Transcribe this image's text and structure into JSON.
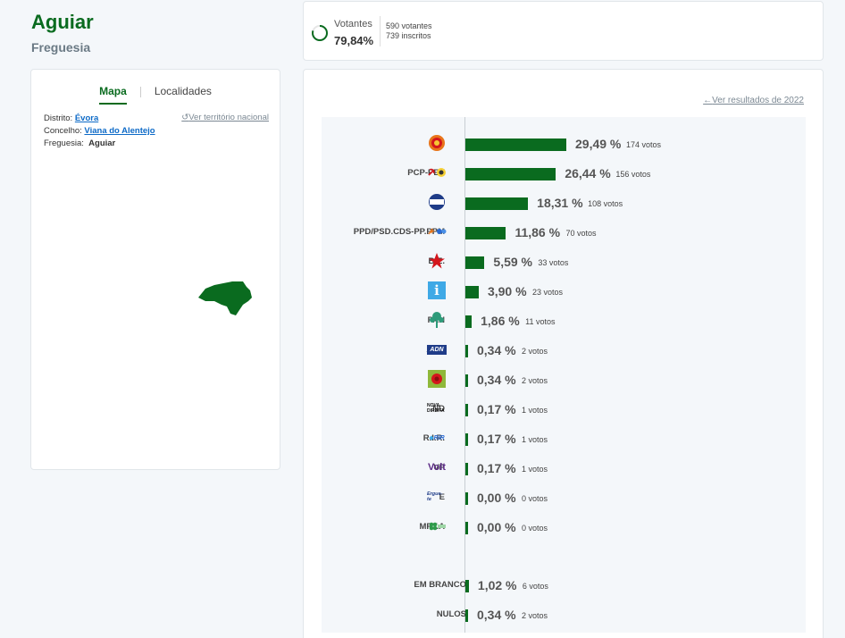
{
  "header": {
    "title": "Aguiar",
    "subtitle": "Freguesia"
  },
  "left_panel": {
    "tabs": [
      {
        "label": "Mapa"
      },
      {
        "label": "Localidades"
      }
    ],
    "distrito_label": "Distrito:",
    "distrito_value": "Évora",
    "concelho_label": "Concelho:",
    "concelho_value": "Viana do Alentejo",
    "freguesia_label": "Freguesia:",
    "freguesia_value": "Aguiar",
    "national_link": "Ver território nacional",
    "map_color": "#0a6b1f"
  },
  "votantes": {
    "label": "Votantes",
    "percent": "79,84%",
    "percent_value": 79.84,
    "voters": "590 votantes",
    "registered": "739 inscritos"
  },
  "results": {
    "prev_link": "Ver resultados de 2022",
    "bar_color": "#0a6b1f",
    "rows": [
      {
        "party": "PS",
        "pct": "29,49 %",
        "votes": "174 votos",
        "value": 29.49,
        "logo": "ps"
      },
      {
        "party": "PCP-PEV",
        "pct": "26,44 %",
        "votes": "156 votos",
        "value": 26.44,
        "logo": "pcp"
      },
      {
        "party": "CH",
        "pct": "18,31 %",
        "votes": "108 votos",
        "value": 18.31,
        "logo": "ch"
      },
      {
        "party": "PPD/PSD.CDS-PP.PPM",
        "pct": "11,86 %",
        "votes": "70 votos",
        "value": 11.86,
        "logo": "ad"
      },
      {
        "party": "B.E.",
        "pct": "5,59 %",
        "votes": "33 votos",
        "value": 5.59,
        "logo": "be"
      },
      {
        "party": "IL",
        "pct": "3,90 %",
        "votes": "23 votos",
        "value": 3.9,
        "logo": "il"
      },
      {
        "party": "PAN",
        "pct": "1,86 %",
        "votes": "11 votos",
        "value": 1.86,
        "logo": "pan"
      },
      {
        "party": "ADN",
        "pct": "0,34 %",
        "votes": "2 votos",
        "value": 0.34,
        "logo": "adn"
      },
      {
        "party": "L",
        "pct": "0,34 %",
        "votes": "2 votos",
        "value": 0.34,
        "logo": "livre"
      },
      {
        "party": "ND",
        "pct": "0,17 %",
        "votes": "1 votos",
        "value": 0.17,
        "logo": "nd"
      },
      {
        "party": "R.I.R.",
        "pct": "0,17 %",
        "votes": "1 votos",
        "value": 0.17,
        "logo": "rir"
      },
      {
        "party": "VP",
        "pct": "0,17 %",
        "votes": "1 votos",
        "value": 0.17,
        "logo": "volt"
      },
      {
        "party": "E",
        "pct": "0,00 %",
        "votes": "0 votos",
        "value": 0.0,
        "logo": "ergue"
      },
      {
        "party": "MPT.A",
        "pct": "0,00 %",
        "votes": "0 votos",
        "value": 0.0,
        "logo": "mpt"
      },
      {
        "party": "EM BRANCO",
        "pct": "1,02 %",
        "votes": "6 votos",
        "value": 1.02,
        "logo": ""
      },
      {
        "party": "NULOS",
        "pct": "0,34 %",
        "votes": "2 votos",
        "value": 0.34,
        "logo": ""
      }
    ]
  },
  "logo_texts": {
    "adn": "ADN",
    "nd": "NOVA DIREITA",
    "rir": "RIR",
    "volt": "Volt",
    "ergue": "Ergue-te",
    "il": "i",
    "ch": "CHEGA"
  }
}
